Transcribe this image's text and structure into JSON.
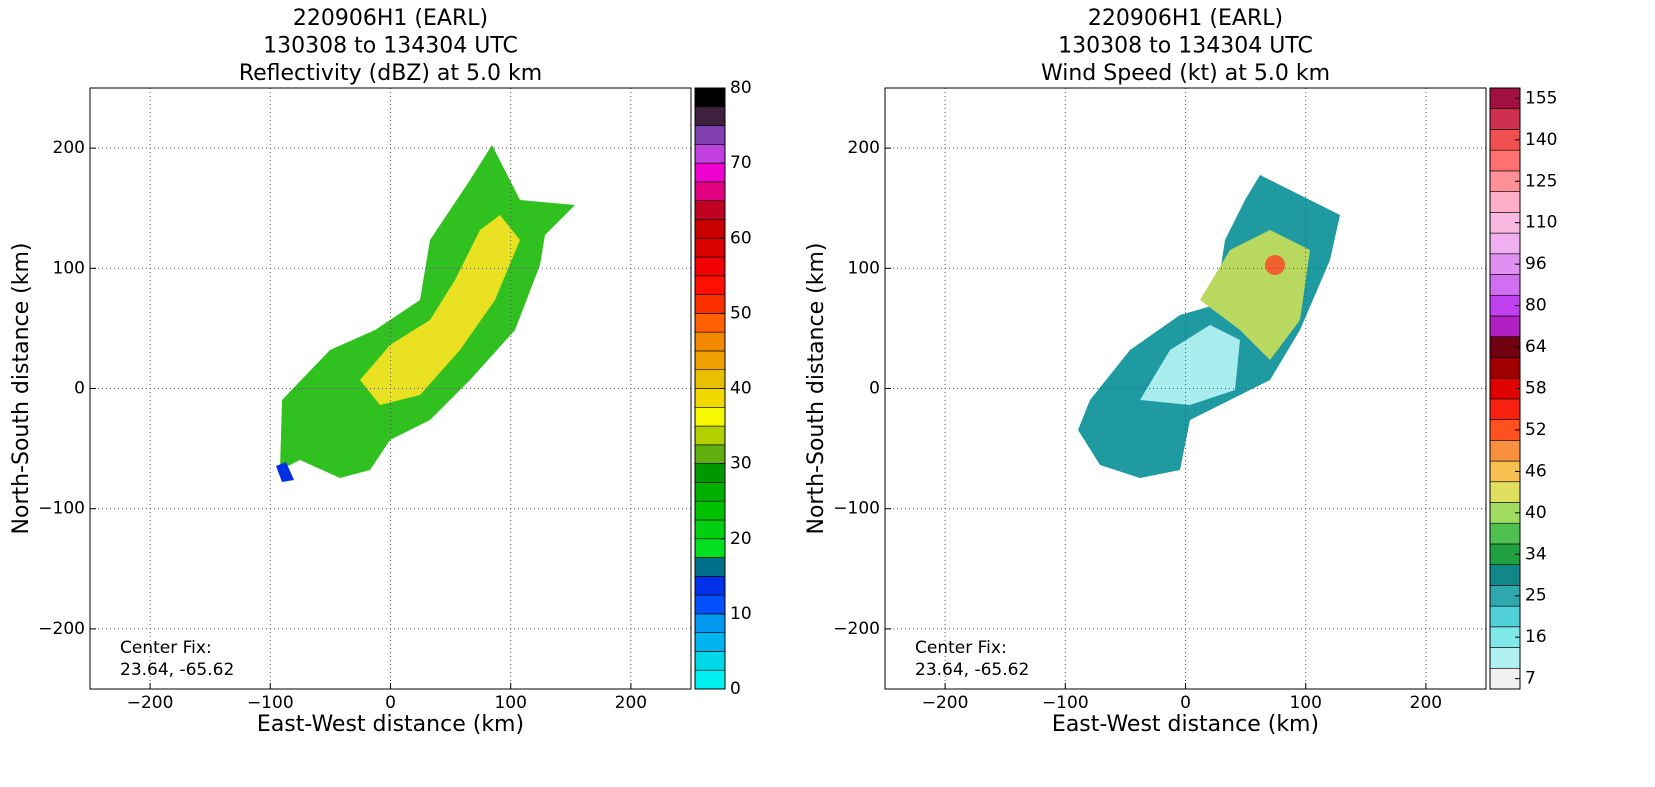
{
  "chart_data": [
    {
      "type": "heatmap",
      "title": [
        "220906H1 (EARL)",
        "130308 to 134304 UTC",
        "Reflectivity (dBZ) at 5.0 km"
      ],
      "xlabel": "East-West distance (km)",
      "ylabel": "North-South distance (km)",
      "xlim": [
        -250,
        250
      ],
      "ylim": [
        -250,
        250
      ],
      "xticks": [
        {
          "value": -200,
          "label": "−200"
        },
        {
          "value": -100,
          "label": "−100"
        },
        0,
        100,
        200
      ],
      "yticks": [
        {
          "value": -200,
          "label": "−200"
        },
        {
          "value": -100,
          "label": "−100"
        },
        0,
        100,
        200
      ],
      "grid": true,
      "annotation": [
        "Center Fix:",
        "23.64, -65.62"
      ],
      "colorbar": {
        "clim": [
          0,
          80
        ],
        "ticks": [
          0,
          10,
          20,
          30,
          40,
          50,
          60,
          70,
          80
        ],
        "colors": [
          "#00f0f0",
          "#00d8e8",
          "#00b4f0",
          "#0098f0",
          "#0050ff",
          "#0030e8",
          "#007088",
          "#00e020",
          "#00d010",
          "#00c000",
          "#00b000",
          "#009800",
          "#60b010",
          "#b0d000",
          "#f8f800",
          "#f0d800",
          "#e8c000",
          "#f0a000",
          "#f08800",
          "#ff6000",
          "#ff3000",
          "#ff1000",
          "#f00000",
          "#d80000",
          "#c80000",
          "#c00020",
          "#e00080",
          "#f000d0",
          "#c040e0",
          "#8040b0",
          "#402040",
          "#000000"
        ]
      }
    },
    {
      "type": "heatmap",
      "title": [
        "220906H1 (EARL)",
        "130308 to 134304 UTC",
        "Wind Speed (kt) at 5.0 km"
      ],
      "xlabel": "East-West distance (km)",
      "ylabel": "North-South distance (km)",
      "xlim": [
        -250,
        250
      ],
      "ylim": [
        -250,
        250
      ],
      "xticks": [
        {
          "value": -200,
          "label": "−200"
        },
        {
          "value": -100,
          "label": "−100"
        },
        0,
        100,
        200
      ],
      "yticks": [
        {
          "value": -200,
          "label": "−200"
        },
        {
          "value": -100,
          "label": "−100"
        },
        0,
        100,
        200
      ],
      "grid": true,
      "annotation": [
        "Center Fix:",
        "23.64, -65.62"
      ],
      "colorbar": {
        "ticks": [
          7,
          16,
          25,
          34,
          40,
          46,
          52,
          58,
          64,
          80,
          96,
          110,
          125,
          140,
          155
        ],
        "colors": [
          "#f0f0f0",
          "#b0f0f0",
          "#80e8e8",
          "#50d0d8",
          "#30a8b0",
          "#108888",
          "#20a040",
          "#50c050",
          "#a0dc60",
          "#e0e060",
          "#f8c050",
          "#f89040",
          "#ff5020",
          "#f82010",
          "#e00000",
          "#a00000",
          "#700010",
          "#b020c0",
          "#c040f0",
          "#d070f0",
          "#e090f0",
          "#f0b0f0",
          "#f8b8e0",
          "#ffb0c8",
          "#ff9098",
          "#ff7070",
          "#f05050",
          "#d03050",
          "#a01040"
        ]
      }
    }
  ]
}
